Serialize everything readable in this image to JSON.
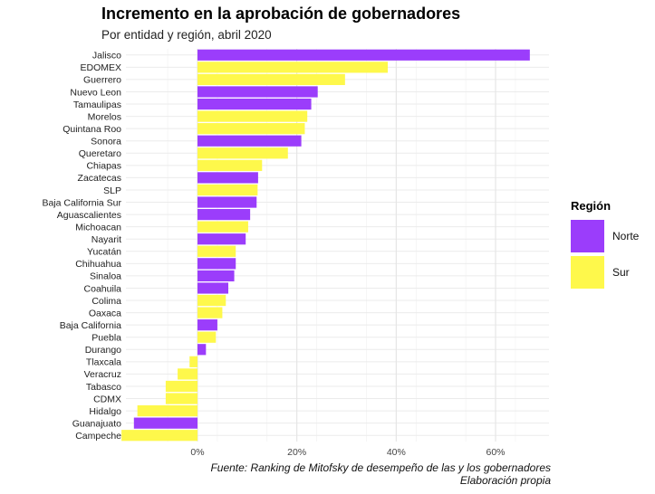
{
  "title": "Incremento en la aprobación de gobernadores",
  "subtitle": "Por entidad y región, abril 2020",
  "caption_line1": "Fuente: Ranking de Mitofsky de desempeño de las y los gobernadores",
  "caption_line2": "Elaboración propia",
  "legend": {
    "title": "Región",
    "items": [
      {
        "label": "Norte",
        "color": "#9b3dfb"
      },
      {
        "label": "Sur",
        "color": "#fef84b"
      }
    ]
  },
  "chart_data": {
    "type": "bar",
    "orientation": "horizontal",
    "title": "Incremento en la aprobación de gobernadores",
    "subtitle": "Por entidad y región, abril 2020",
    "xlabel": "",
    "ylabel": "",
    "xlim": [
      -16,
      70
    ],
    "x_ticks": [
      0,
      20,
      40,
      60
    ],
    "x_tick_labels": [
      "0%",
      "20%",
      "40%",
      "60%"
    ],
    "grid": true,
    "legend_position": "right",
    "categories": [
      "Jalisco",
      "EDOMEX",
      "Guerrero",
      "Nuevo Leon",
      "Tamaulipas",
      "Morelos",
      "Quintana Roo",
      "Sonora",
      "Queretaro",
      "Chiapas",
      "Zacatecas",
      "SLP",
      "Baja California Sur",
      "Aguascalientes",
      "Michoacan",
      "Nayarit",
      "Yucatán",
      "Chihuahua",
      "Sinaloa",
      "Coahuila",
      "Colima",
      "Oaxaca",
      "Baja California",
      "Puebla",
      "Durango",
      "Tlaxcala",
      "Veracruz",
      "Tabasco",
      "CDMX",
      "Hidalgo",
      "Guanajuato",
      "Campeche"
    ],
    "values": [
      66.9,
      38.3,
      29.7,
      24.2,
      22.9,
      22.1,
      21.6,
      20.9,
      18.2,
      13.0,
      12.2,
      12.1,
      11.9,
      10.6,
      10.2,
      9.7,
      7.7,
      7.7,
      7.4,
      6.2,
      5.7,
      5.0,
      4.0,
      3.7,
      1.7,
      -1.6,
      -4.0,
      -6.4,
      -6.4,
      -12.1,
      -12.8,
      -15.3
    ],
    "region": [
      "Norte",
      "Sur",
      "Sur",
      "Norte",
      "Norte",
      "Sur",
      "Sur",
      "Norte",
      "Sur",
      "Sur",
      "Norte",
      "Sur",
      "Norte",
      "Norte",
      "Sur",
      "Norte",
      "Sur",
      "Norte",
      "Norte",
      "Norte",
      "Sur",
      "Sur",
      "Norte",
      "Sur",
      "Norte",
      "Sur",
      "Sur",
      "Sur",
      "Sur",
      "Sur",
      "Norte",
      "Sur"
    ]
  }
}
